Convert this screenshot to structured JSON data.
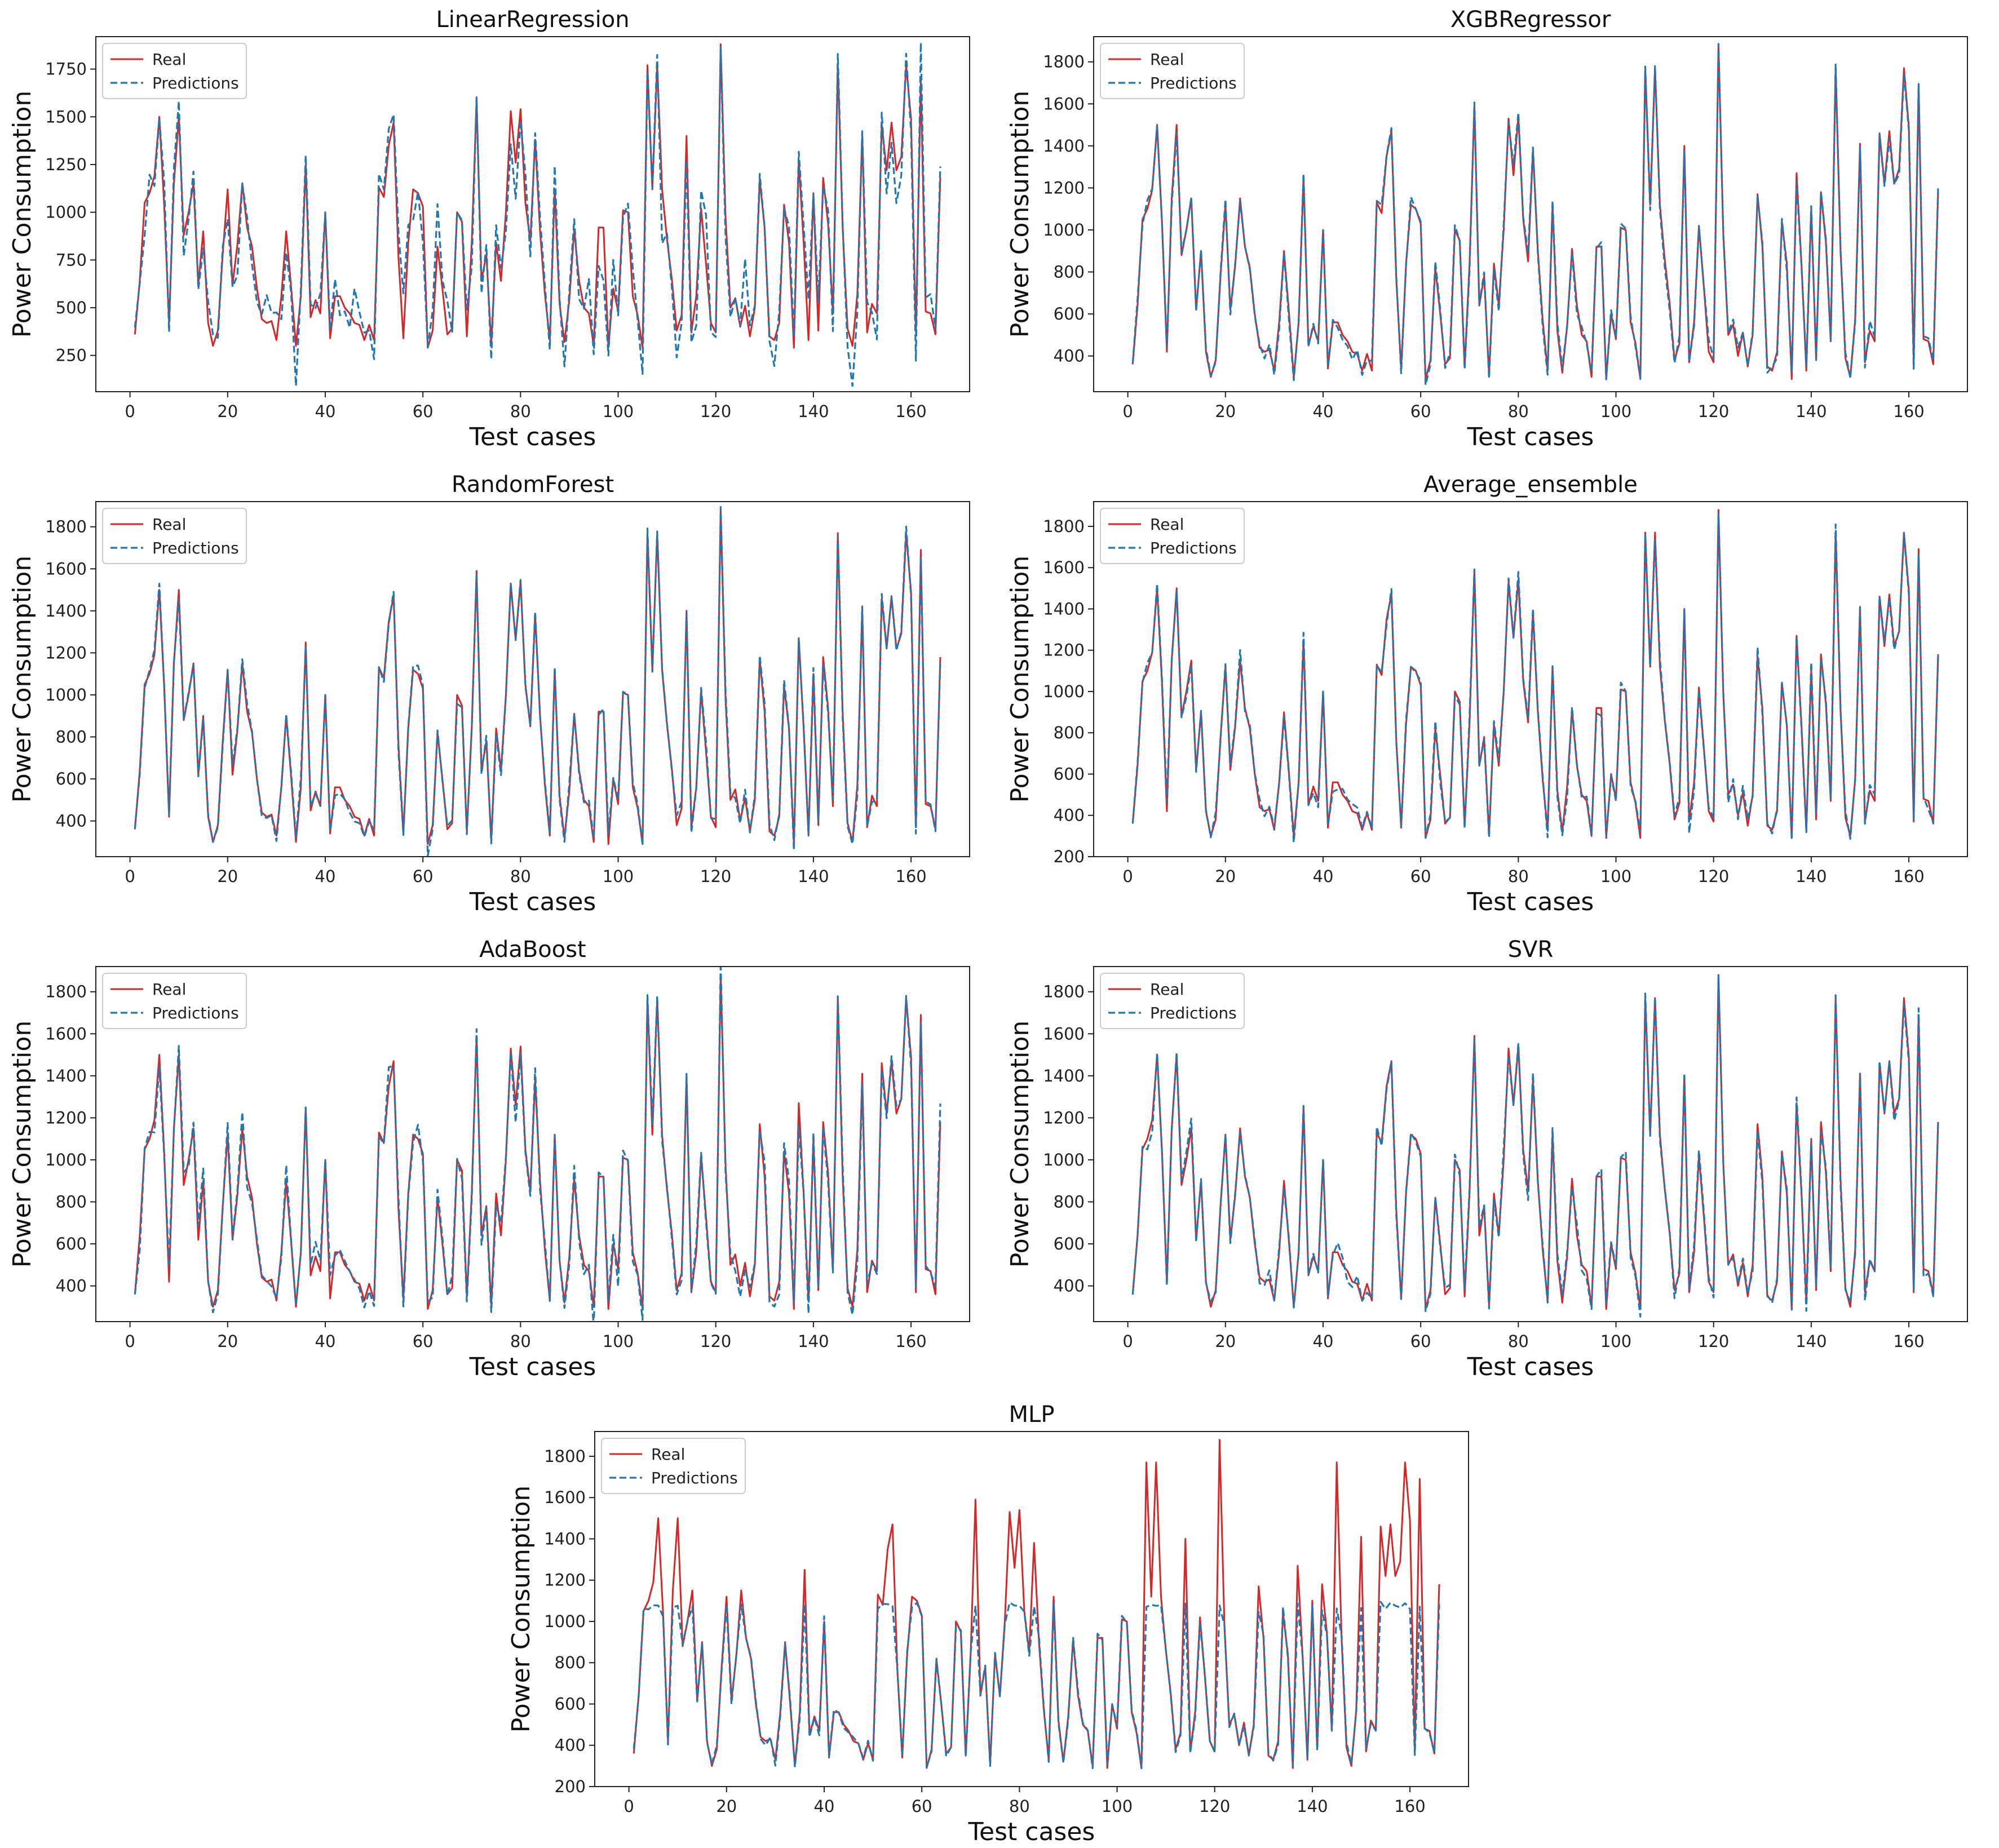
{
  "colors": {
    "real": "#d62728",
    "predictions": "#1f77b4",
    "axes": "#222222"
  },
  "chart_data": [
    {
      "type": "line",
      "title": "LinearRegression",
      "xlabel": "Test cases",
      "ylabel": "Power Consumption",
      "xlim": [
        -7,
        172
      ],
      "ylim": [
        60,
        1920
      ],
      "xticks": [
        0,
        20,
        40,
        60,
        80,
        100,
        120,
        140,
        160
      ],
      "yticks": [
        250,
        500,
        750,
        1000,
        1250,
        1500,
        1750
      ],
      "legend": "top-left",
      "series": [
        {
          "name": "Real",
          "style": "solid"
        },
        {
          "name": "Predictions",
          "style": "dashed",
          "deviation": "high"
        }
      ]
    },
    {
      "type": "line",
      "title": "XGBRegressor",
      "xlabel": "Test cases",
      "ylabel": "Power Consumption",
      "xlim": [
        -7,
        172
      ],
      "ylim": [
        230,
        1920
      ],
      "xticks": [
        0,
        20,
        40,
        60,
        80,
        100,
        120,
        140,
        160
      ],
      "yticks": [
        400,
        600,
        800,
        1000,
        1200,
        1400,
        1600,
        1800
      ],
      "legend": "top-left",
      "series": [
        {
          "name": "Real",
          "style": "solid"
        },
        {
          "name": "Predictions",
          "style": "dashed",
          "deviation": "low"
        }
      ]
    },
    {
      "type": "line",
      "title": "RandomForest",
      "xlabel": "Test cases",
      "ylabel": "Power Consumption",
      "xlim": [
        -7,
        172
      ],
      "ylim": [
        230,
        1920
      ],
      "xticks": [
        0,
        20,
        40,
        60,
        80,
        100,
        120,
        140,
        160
      ],
      "yticks": [
        400,
        600,
        800,
        1000,
        1200,
        1400,
        1600,
        1800
      ],
      "legend": "top-left",
      "series": [
        {
          "name": "Real",
          "style": "solid"
        },
        {
          "name": "Predictions",
          "style": "dashed",
          "deviation": "low"
        }
      ]
    },
    {
      "type": "line",
      "title": "Average_ensemble",
      "xlabel": "Test cases",
      "ylabel": "Power Consumption",
      "xlim": [
        -7,
        172
      ],
      "ylim": [
        200,
        1920
      ],
      "xticks": [
        0,
        20,
        40,
        60,
        80,
        100,
        120,
        140,
        160
      ],
      "yticks": [
        200,
        400,
        600,
        800,
        1000,
        1200,
        1400,
        1600,
        1800
      ],
      "legend": "top-left",
      "series": [
        {
          "name": "Real",
          "style": "solid"
        },
        {
          "name": "Predictions",
          "style": "dashed",
          "deviation": "low"
        }
      ]
    },
    {
      "type": "line",
      "title": "AdaBoost",
      "xlabel": "Test cases",
      "ylabel": "Power Consumption",
      "xlim": [
        -7,
        172
      ],
      "ylim": [
        230,
        1920
      ],
      "xticks": [
        0,
        20,
        40,
        60,
        80,
        100,
        120,
        140,
        160
      ],
      "yticks": [
        400,
        600,
        800,
        1000,
        1200,
        1400,
        1600,
        1800
      ],
      "legend": "top-left",
      "series": [
        {
          "name": "Real",
          "style": "solid"
        },
        {
          "name": "Predictions",
          "style": "dashed",
          "deviation": "medium"
        }
      ]
    },
    {
      "type": "line",
      "title": "SVR",
      "xlabel": "Test cases",
      "ylabel": "Power Consumption",
      "xlim": [
        -7,
        172
      ],
      "ylim": [
        230,
        1920
      ],
      "xticks": [
        0,
        20,
        40,
        60,
        80,
        100,
        120,
        140,
        160
      ],
      "yticks": [
        400,
        600,
        800,
        1000,
        1200,
        1400,
        1600,
        1800
      ],
      "legend": "top-left",
      "series": [
        {
          "name": "Real",
          "style": "solid"
        },
        {
          "name": "Predictions",
          "style": "dashed",
          "deviation": "low"
        }
      ]
    },
    {
      "type": "line",
      "title": "MLP",
      "xlabel": "Test cases",
      "ylabel": "Power Consumption",
      "xlim": [
        -7,
        172
      ],
      "ylim": [
        200,
        1920
      ],
      "xticks": [
        0,
        20,
        40,
        60,
        80,
        100,
        120,
        140,
        160
      ],
      "yticks": [
        200,
        400,
        600,
        800,
        1000,
        1200,
        1400,
        1600,
        1800
      ],
      "legend": "top-left",
      "series": [
        {
          "name": "Real",
          "style": "solid"
        },
        {
          "name": "Predictions",
          "style": "dashed",
          "deviation": "clipped",
          "clip_max": 1075
        }
      ]
    }
  ],
  "real_values": [
    360,
    640,
    1050,
    1100,
    1190,
    1500,
    1040,
    420,
    1150,
    1500,
    880,
    1000,
    1150,
    620,
    900,
    420,
    300,
    380,
    780,
    1120,
    620,
    830,
    1150,
    920,
    820,
    600,
    440,
    420,
    430,
    330,
    560,
    900,
    610,
    300,
    560,
    1250,
    450,
    540,
    470,
    1000,
    340,
    560,
    560,
    500,
    470,
    420,
    410,
    330,
    410,
    330,
    1130,
    1080,
    1350,
    1470,
    760,
    340,
    840,
    1120,
    1100,
    1030,
    290,
    380,
    820,
    600,
    360,
    390,
    1000,
    950,
    350,
    840,
    1590,
    640,
    780,
    310,
    840,
    640,
    1000,
    1530,
    1260,
    1540,
    1050,
    850,
    1380,
    900,
    570,
    330,
    1120,
    520,
    320,
    540,
    910,
    640,
    500,
    470,
    300,
    920,
    920,
    290,
    600,
    480,
    1010,
    1000,
    560,
    460,
    290,
    1770,
    1120,
    1770,
    1120,
    860,
    650,
    380,
    460,
    1400,
    370,
    560,
    1020,
    730,
    420,
    370,
    1880,
    980,
    500,
    550,
    400,
    510,
    350,
    500,
    1170,
    920,
    350,
    330,
    420,
    1040,
    840,
    290,
    1270,
    840,
    330,
    1100,
    380,
    1180,
    940,
    470,
    1770,
    910,
    390,
    300,
    570,
    1410,
    370,
    520,
    470,
    1460,
    1220,
    1470,
    1220,
    1290,
    1770,
    1490,
    370,
    1690,
    480,
    470,
    360,
    1180
  ]
}
